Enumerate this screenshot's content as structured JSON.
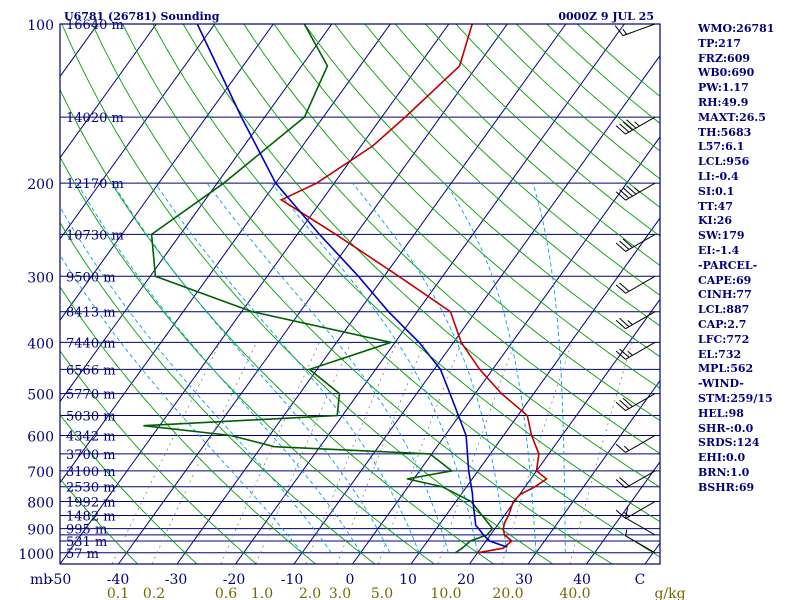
{
  "chart_data": {
    "type": "line",
    "title_left": "U6781 (26781) Sounding",
    "title_right": "0000Z 9 JUL 25",
    "pressure_axis_label": "mb",
    "pressure_levels": [
      100,
      200,
      300,
      400,
      500,
      600,
      700,
      800,
      900,
      1000
    ],
    "pressure_ticks": [
      100,
      150,
      200,
      250,
      300,
      350,
      400,
      450,
      500,
      550,
      600,
      650,
      700,
      750,
      800,
      850,
      900,
      925,
      950,
      1000
    ],
    "height_labels": [
      {
        "p": 100,
        "label": "16640 m"
      },
      {
        "p": 150,
        "label": "14020 m"
      },
      {
        "p": 200,
        "label": "12170 m"
      },
      {
        "p": 250,
        "label": "10730 m"
      },
      {
        "p": 300,
        "label": "9500 m"
      },
      {
        "p": 350,
        "label": "8413 m"
      },
      {
        "p": 400,
        "label": "7440 m"
      },
      {
        "p": 450,
        "label": "6566 m"
      },
      {
        "p": 500,
        "label": "5770 m"
      },
      {
        "p": 550,
        "label": "5030 m"
      },
      {
        "p": 600,
        "label": "4342 m"
      },
      {
        "p": 650,
        "label": "3700 m"
      },
      {
        "p": 700,
        "label": "3100 m"
      },
      {
        "p": 750,
        "label": "2530 m"
      },
      {
        "p": 800,
        "label": "1992 m"
      },
      {
        "p": 850,
        "label": "1482 m"
      },
      {
        "p": 900,
        "label": "995 m"
      },
      {
        "p": 950,
        "label": "531 m"
      },
      {
        "p": 1000,
        "label": "57 m"
      }
    ],
    "temp_axis_labels": [
      "-50",
      "-40",
      "-30",
      "-20",
      "-10",
      "0",
      "10",
      "20",
      "30",
      "40",
      "C"
    ],
    "mixing_ratio_labels": [
      "0.1",
      "0.2",
      "0.6",
      "1.0",
      "2.0",
      "3.0",
      "5.0",
      "10.0",
      "20.0",
      "40.0",
      "g/kg"
    ],
    "series": [
      {
        "name": "temperature",
        "color": "#c00000",
        "points": [
          [
            1000,
            20.0
          ],
          [
            980,
            23.8
          ],
          [
            950,
            24.4
          ],
          [
            925,
            22.4
          ],
          [
            900,
            21.4
          ],
          [
            875,
            20.9
          ],
          [
            850,
            20.7
          ],
          [
            800,
            19.8
          ],
          [
            775,
            20.1
          ],
          [
            750,
            21.7
          ],
          [
            725,
            22.7
          ],
          [
            700,
            20.0
          ],
          [
            650,
            18.3
          ],
          [
            600,
            14.8
          ],
          [
            550,
            11.6
          ],
          [
            500,
            4.5
          ],
          [
            450,
            -2.2
          ],
          [
            400,
            -8.7
          ],
          [
            350,
            -14.3
          ],
          [
            300,
            -27.5
          ],
          [
            250,
            -43.4
          ],
          [
            215,
            -57.0
          ],
          [
            200,
            -53.0
          ],
          [
            170,
            -48.0
          ],
          [
            150,
            -46.0
          ],
          [
            120,
            -43.0
          ],
          [
            100,
            -46.0
          ]
        ]
      },
      {
        "name": "dewpoint",
        "color": "#006000",
        "points": [
          [
            1000,
            16.2
          ],
          [
            980,
            16.8
          ],
          [
            950,
            17.3
          ],
          [
            925,
            19.4
          ],
          [
            900,
            19.6
          ],
          [
            850,
            16.2
          ],
          [
            800,
            12.6
          ],
          [
            750,
            5.8
          ],
          [
            725,
            -1.1
          ],
          [
            700,
            5.5
          ],
          [
            650,
            -0.3
          ],
          [
            630,
            -27.8
          ],
          [
            600,
            -36.6
          ],
          [
            575,
            -52.7
          ],
          [
            550,
            -20.9
          ],
          [
            500,
            -23.2
          ],
          [
            450,
            -31.3
          ],
          [
            400,
            -20.7
          ],
          [
            350,
            -48.2
          ],
          [
            300,
            -69.1
          ],
          [
            250,
            -74.9
          ],
          [
            200,
            -68.9
          ],
          [
            150,
            -63.2
          ],
          [
            120,
            -65.6
          ],
          [
            100,
            -74.7
          ]
        ]
      },
      {
        "name": "parcel",
        "color": "#0000c0",
        "points": [
          [
            975,
            24.3
          ],
          [
            950,
            20.6
          ],
          [
            925,
            18.8
          ],
          [
            900,
            17.2
          ],
          [
            887,
            16.3
          ],
          [
            850,
            14.9
          ],
          [
            800,
            12.9
          ],
          [
            772,
            11.8
          ],
          [
            700,
            8.4
          ],
          [
            600,
            3.6
          ],
          [
            500,
            -4.3
          ],
          [
            450,
            -8.9
          ],
          [
            400,
            -15.9
          ],
          [
            350,
            -24.9
          ],
          [
            300,
            -34.4
          ],
          [
            250,
            -46.2
          ],
          [
            200,
            -60.0
          ],
          [
            150,
            -74.0
          ],
          [
            100,
            -93.0
          ]
        ]
      }
    ],
    "wind_barbs": [
      {
        "p": 100,
        "dir": 250,
        "kt": 15
      },
      {
        "p": 150,
        "dir": 240,
        "kt": 45
      },
      {
        "p": 200,
        "dir": 240,
        "kt": 45
      },
      {
        "p": 250,
        "dir": 240,
        "kt": 30
      },
      {
        "p": 300,
        "dir": 240,
        "kt": 20
      },
      {
        "p": 350,
        "dir": 240,
        "kt": 25
      },
      {
        "p": 400,
        "dir": 240,
        "kt": 25
      },
      {
        "p": 500,
        "dir": 240,
        "kt": 30
      },
      {
        "p": 600,
        "dir": 240,
        "kt": 15
      },
      {
        "p": 700,
        "dir": 240,
        "kt": 20
      },
      {
        "p": 800,
        "dir": 240,
        "kt": 15
      },
      {
        "p": 925,
        "dir": 300,
        "kt": 10
      },
      {
        "p": 1000,
        "dir": 300,
        "kt": 5
      }
    ],
    "colors": {
      "frame": "#00007a",
      "isobar": "#00007a",
      "isotherm": "#00007a",
      "dry_adiabat": "#00a000",
      "moist_adiabat": "#00a0e0",
      "mixing_ratio": "#808080",
      "stats_text": "#00007a",
      "mixing_label": "#7a6600"
    }
  },
  "stats": [
    "WMO:26781",
    "TP:217",
    "FRZ:609",
    "WB0:690",
    "PW:1.17",
    "RH:49.9",
    "MAXT:26.5",
    "TH:5683",
    "L57:6.1",
    "LCL:956",
    "LI:-0.4",
    "SI:0.1",
    "TT:47",
    "KI:26",
    "SW:179",
    "EI:-1.4",
    "-PARCEL-",
    "CAPE:69",
    "CINH:77",
    "LCL:887",
    "CAP:2.7",
    "LFC:772",
    "EL:732",
    "MPL:562",
    "-WIND-",
    "STM:259/15",
    "HEL:98",
    "SHR-:0.0",
    "SRDS:124",
    "EHI:0.0",
    "BRN:1.0",
    "BSHR:69"
  ]
}
